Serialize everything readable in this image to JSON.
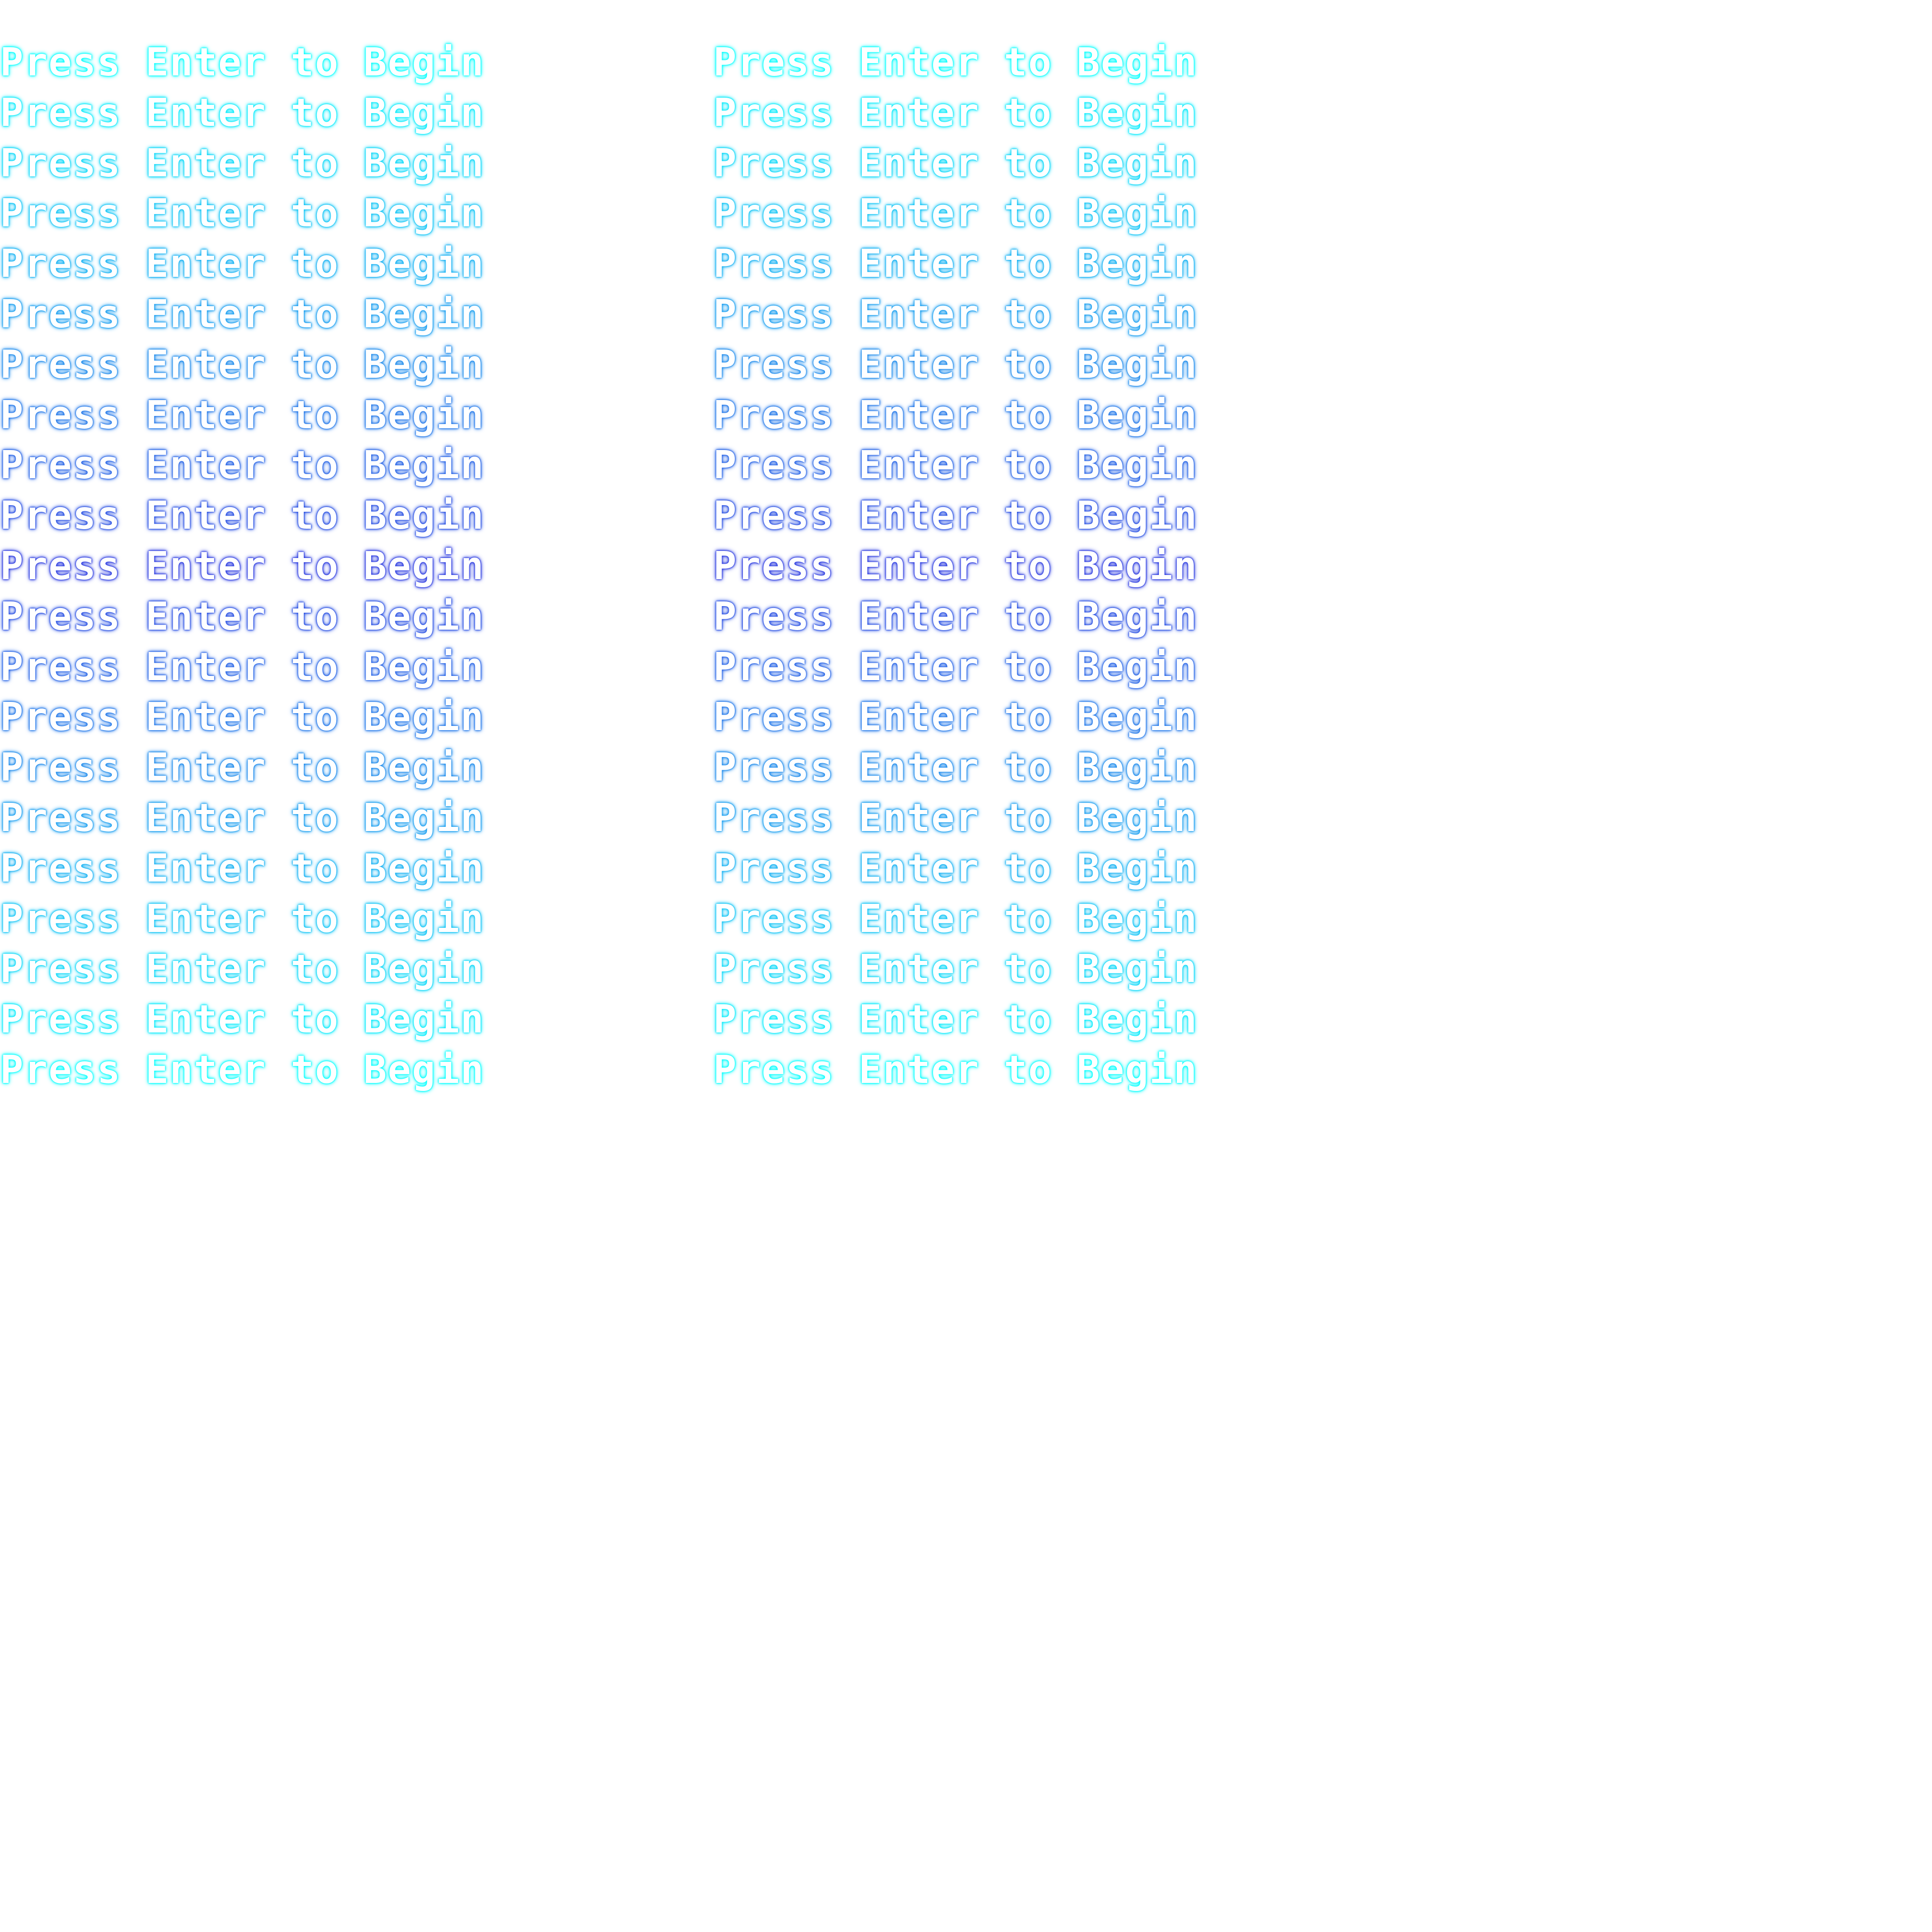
{
  "screen": {
    "prompt_text": "Press Enter to Begin",
    "repeat_rows": 21,
    "columns": 2
  },
  "colors": {
    "background": "#ffffff",
    "text_fill": "#ffffff",
    "glow_edge": "#00ffff",
    "glow_center": "#2a3ae0"
  }
}
